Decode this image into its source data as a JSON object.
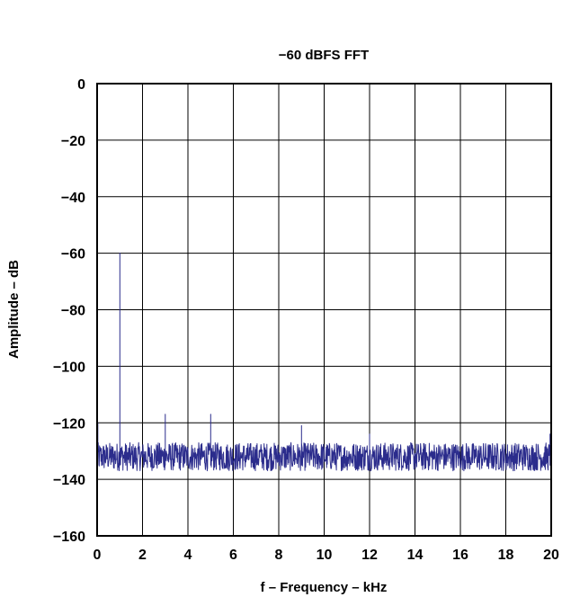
{
  "chart_data": {
    "type": "line",
    "title": "−60 dBFS FFT",
    "xlabel": "f – Frequency – kHz",
    "ylabel": "Amplitude – dB",
    "xlim": [
      0,
      20
    ],
    "ylim": [
      -160,
      0
    ],
    "grid": true,
    "x_ticks": [
      "0",
      "2",
      "4",
      "6",
      "8",
      "10",
      "12",
      "14",
      "16",
      "18",
      "20"
    ],
    "y_ticks": [
      "0",
      "−20",
      "−40",
      "−60",
      "−80",
      "−100",
      "−120",
      "−140",
      "−160"
    ],
    "series": [
      {
        "color": "#2b2c8c",
        "noise_floor": {
          "min_db": -137,
          "max_db": -127
        },
        "peaks": [
          {
            "x": 0.03,
            "y": -120
          },
          {
            "x": 1.0,
            "y": -60
          },
          {
            "x": 3.0,
            "y": -117
          },
          {
            "x": 5.0,
            "y": -117
          },
          {
            "x": 9.0,
            "y": -121
          },
          {
            "x": 12.0,
            "y": -124
          },
          {
            "x": 19.95,
            "y": -124
          }
        ]
      }
    ]
  }
}
